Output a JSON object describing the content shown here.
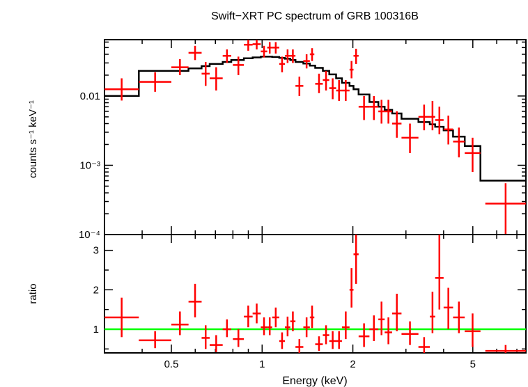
{
  "title": "Swift−XRT PC spectrum of GRB 100316B",
  "colors": {
    "data": "#ff0000",
    "model": "#000000",
    "unity": "#00ff00",
    "frame": "#000000"
  },
  "chart_data": [
    {
      "type": "scatter",
      "panel": "spectrum",
      "ylabel": "counts s⁻¹ keV⁻¹",
      "x_scale": "log",
      "y_scale": "log",
      "xlim": [
        0.3,
        7.5
      ],
      "ylim": [
        0.0001,
        0.065
      ],
      "y_ticks": [
        {
          "value": 0.01,
          "label": "0.01"
        },
        {
          "value": 0.001,
          "label": "10⁻³"
        },
        {
          "value": 0.0001,
          "label": "10⁻⁴"
        }
      ],
      "series": [
        {
          "name": "",
          "kind": "data_with_errors",
          "points": [
            {
              "x0": 0.3,
              "x1": 0.39,
              "y": 0.0125,
              "y0": 0.0086,
              "y1": 0.018
            },
            {
              "x0": 0.39,
              "x1": 0.5,
              "y": 0.016,
              "y0": 0.0115,
              "y1": 0.022
            },
            {
              "x0": 0.5,
              "x1": 0.57,
              "y": 0.026,
              "y0": 0.02,
              "y1": 0.034
            },
            {
              "x0": 0.57,
              "x1": 0.63,
              "y": 0.042,
              "y0": 0.033,
              "y1": 0.053
            },
            {
              "x0": 0.63,
              "x1": 0.67,
              "y": 0.021,
              "y0": 0.014,
              "y1": 0.031
            },
            {
              "x0": 0.67,
              "x1": 0.74,
              "y": 0.018,
              "y0": 0.012,
              "y1": 0.026
            },
            {
              "x0": 0.74,
              "x1": 0.79,
              "y": 0.038,
              "y0": 0.03,
              "y1": 0.047
            },
            {
              "x0": 0.8,
              "x1": 0.87,
              "y": 0.028,
              "y0": 0.02,
              "y1": 0.037
            },
            {
              "x0": 0.87,
              "x1": 0.93,
              "y": 0.055,
              "y0": 0.045,
              "y1": 0.065
            },
            {
              "x0": 0.93,
              "x1": 0.99,
              "y": 0.056,
              "y0": 0.047,
              "y1": 0.065
            },
            {
              "x0": 0.99,
              "x1": 1.04,
              "y": 0.044,
              "y0": 0.036,
              "y1": 0.053
            },
            {
              "x0": 1.04,
              "x1": 1.08,
              "y": 0.05,
              "y0": 0.041,
              "y1": 0.06
            },
            {
              "x0": 1.08,
              "x1": 1.14,
              "y": 0.05,
              "y0": 0.041,
              "y1": 0.06
            },
            {
              "x0": 1.14,
              "x1": 1.19,
              "y": 0.029,
              "y0": 0.022,
              "y1": 0.037
            },
            {
              "x0": 1.19,
              "x1": 1.24,
              "y": 0.038,
              "y0": 0.03,
              "y1": 0.047
            },
            {
              "x0": 1.24,
              "x1": 1.29,
              "y": 0.038,
              "y0": 0.03,
              "y1": 0.047
            },
            {
              "x0": 1.29,
              "x1": 1.37,
              "y": 0.014,
              "y0": 0.01,
              "y1": 0.019
            },
            {
              "x0": 1.37,
              "x1": 1.44,
              "y": 0.032,
              "y0": 0.025,
              "y1": 0.04
            },
            {
              "x0": 1.44,
              "x1": 1.49,
              "y": 0.04,
              "y0": 0.032,
              "y1": 0.049
            },
            {
              "x0": 1.5,
              "x1": 1.59,
              "y": 0.015,
              "y0": 0.011,
              "y1": 0.021
            },
            {
              "x0": 1.59,
              "x1": 1.67,
              "y": 0.017,
              "y0": 0.012,
              "y1": 0.023
            },
            {
              "x0": 1.67,
              "x1": 1.76,
              "y": 0.013,
              "y0": 0.009,
              "y1": 0.018
            },
            {
              "x0": 1.76,
              "x1": 1.84,
              "y": 0.012,
              "y0": 0.0085,
              "y1": 0.017
            },
            {
              "x0": 1.84,
              "x1": 1.95,
              "y": 0.012,
              "y0": 0.0085,
              "y1": 0.017
            },
            {
              "x0": 1.95,
              "x1": 2.01,
              "y": 0.024,
              "y0": 0.018,
              "y1": 0.032
            },
            {
              "x0": 2.01,
              "x1": 2.09,
              "y": 0.038,
              "y0": 0.029,
              "y1": 0.048
            },
            {
              "x0": 2.09,
              "x1": 2.27,
              "y": 0.007,
              "y0": 0.0045,
              "y1": 0.01
            },
            {
              "x0": 2.27,
              "x1": 2.43,
              "y": 0.007,
              "y0": 0.0045,
              "y1": 0.01
            },
            {
              "x0": 2.43,
              "x1": 2.55,
              "y": 0.006,
              "y0": 0.004,
              "y1": 0.0088
            },
            {
              "x0": 2.55,
              "x1": 2.7,
              "y": 0.006,
              "y0": 0.004,
              "y1": 0.0088
            },
            {
              "x0": 2.7,
              "x1": 2.9,
              "y": 0.004,
              "y0": 0.0025,
              "y1": 0.006
            },
            {
              "x0": 2.9,
              "x1": 3.3,
              "y": 0.0025,
              "y0": 0.0015,
              "y1": 0.004
            },
            {
              "x0": 3.3,
              "x1": 3.6,
              "y": 0.005,
              "y0": 0.0032,
              "y1": 0.0075
            },
            {
              "x0": 3.6,
              "x1": 3.75,
              "y": 0.005,
              "y0": 0.0032,
              "y1": 0.0085
            },
            {
              "x0": 3.75,
              "x1": 4.0,
              "y": 0.0045,
              "y0": 0.0028,
              "y1": 0.007
            },
            {
              "x0": 4.0,
              "x1": 4.3,
              "y": 0.0033,
              "y0": 0.002,
              "y1": 0.0052
            },
            {
              "x0": 4.3,
              "x1": 4.7,
              "y": 0.0022,
              "y0": 0.0013,
              "y1": 0.0035
            },
            {
              "x0": 4.7,
              "x1": 5.3,
              "y": 0.0015,
              "y0": 0.0008,
              "y1": 0.0025
            },
            {
              "x0": 5.5,
              "x1": 7.5,
              "y": 0.00028,
              "y0": 0.0001,
              "y1": 0.00055
            }
          ]
        },
        {
          "name": "",
          "kind": "model_step",
          "edges": [
            0.3,
            0.39,
            0.5,
            0.57,
            0.63,
            0.67,
            0.74,
            0.79,
            0.87,
            0.93,
            0.99,
            1.04,
            1.08,
            1.14,
            1.19,
            1.24,
            1.29,
            1.37,
            1.44,
            1.5,
            1.59,
            1.67,
            1.76,
            1.84,
            1.95,
            2.01,
            2.09,
            2.27,
            2.43,
            2.55,
            2.7,
            2.9,
            3.3,
            3.6,
            3.75,
            4.0,
            4.3,
            4.7,
            5.3,
            7.5
          ],
          "values": [
            0.01,
            0.023,
            0.023,
            0.025,
            0.027,
            0.029,
            0.031,
            0.033,
            0.035,
            0.036,
            0.037,
            0.037,
            0.0365,
            0.0355,
            0.0345,
            0.033,
            0.031,
            0.0295,
            0.0275,
            0.0255,
            0.023,
            0.0205,
            0.018,
            0.0155,
            0.014,
            0.0125,
            0.0105,
            0.0082,
            0.007,
            0.0063,
            0.0056,
            0.0047,
            0.0042,
            0.0039,
            0.0036,
            0.0032,
            0.0026,
            0.0019,
            0.0006
          ]
        }
      ]
    },
    {
      "type": "scatter",
      "panel": "ratio",
      "xlabel": "Energy (keV)",
      "ylabel": "ratio",
      "x_scale": "log",
      "xlim": [
        0.3,
        7.5
      ],
      "ylim": [
        0.4,
        3.4
      ],
      "x_ticks": [
        {
          "value": 0.5,
          "label": "0.5"
        },
        {
          "value": 1,
          "label": "1"
        },
        {
          "value": 2,
          "label": "2"
        },
        {
          "value": 5,
          "label": "5"
        }
      ],
      "y_ticks": [
        {
          "value": 1,
          "label": "1"
        },
        {
          "value": 2,
          "label": "2"
        },
        {
          "value": 3,
          "label": "3"
        }
      ],
      "reference_line": 1,
      "series": [
        {
          "name": "",
          "kind": "data_with_errors",
          "points": [
            {
              "x0": 0.3,
              "x1": 0.39,
              "y": 1.3,
              "y0": 0.8,
              "y1": 1.8
            },
            {
              "x0": 0.39,
              "x1": 0.5,
              "y": 0.72,
              "y0": 0.52,
              "y1": 0.95
            },
            {
              "x0": 0.5,
              "x1": 0.57,
              "y": 1.12,
              "y0": 0.85,
              "y1": 1.45
            },
            {
              "x0": 0.57,
              "x1": 0.63,
              "y": 1.7,
              "y0": 1.3,
              "y1": 2.15
            },
            {
              "x0": 0.63,
              "x1": 0.67,
              "y": 0.78,
              "y0": 0.5,
              "y1": 1.1
            },
            {
              "x0": 0.67,
              "x1": 0.74,
              "y": 0.6,
              "y0": 0.42,
              "y1": 0.85
            },
            {
              "x0": 0.74,
              "x1": 0.79,
              "y": 1.0,
              "y0": 0.8,
              "y1": 1.25
            },
            {
              "x0": 0.8,
              "x1": 0.87,
              "y": 0.75,
              "y0": 0.55,
              "y1": 1.0
            },
            {
              "x0": 0.87,
              "x1": 0.93,
              "y": 1.32,
              "y0": 1.05,
              "y1": 1.6
            },
            {
              "x0": 0.93,
              "x1": 0.99,
              "y": 1.4,
              "y0": 1.15,
              "y1": 1.65
            },
            {
              "x0": 0.99,
              "x1": 1.04,
              "y": 1.05,
              "y0": 0.85,
              "y1": 1.3
            },
            {
              "x0": 1.04,
              "x1": 1.08,
              "y": 1.05,
              "y0": 0.85,
              "y1": 1.3
            },
            {
              "x0": 1.08,
              "x1": 1.14,
              "y": 1.3,
              "y0": 1.05,
              "y1": 1.55
            },
            {
              "x0": 1.14,
              "x1": 1.19,
              "y": 0.7,
              "y0": 0.5,
              "y1": 0.92
            },
            {
              "x0": 1.19,
              "x1": 1.24,
              "y": 1.05,
              "y0": 0.82,
              "y1": 1.32
            },
            {
              "x0": 1.24,
              "x1": 1.29,
              "y": 1.2,
              "y0": 0.95,
              "y1": 1.45
            },
            {
              "x0": 1.29,
              "x1": 1.37,
              "y": 0.55,
              "y0": 0.4,
              "y1": 0.75
            },
            {
              "x0": 1.37,
              "x1": 1.44,
              "y": 1.05,
              "y0": 0.8,
              "y1": 1.3
            },
            {
              "x0": 1.44,
              "x1": 1.49,
              "y": 1.3,
              "y0": 1.03,
              "y1": 1.6
            },
            {
              "x0": 1.5,
              "x1": 1.59,
              "y": 0.62,
              "y0": 0.45,
              "y1": 0.82
            },
            {
              "x0": 1.59,
              "x1": 1.67,
              "y": 0.85,
              "y0": 0.62,
              "y1": 1.1
            },
            {
              "x0": 1.67,
              "x1": 1.76,
              "y": 0.7,
              "y0": 0.5,
              "y1": 0.95
            },
            {
              "x0": 1.76,
              "x1": 1.84,
              "y": 0.7,
              "y0": 0.5,
              "y1": 0.95
            },
            {
              "x0": 1.84,
              "x1": 1.95,
              "y": 1.05,
              "y0": 0.75,
              "y1": 1.45
            },
            {
              "x0": 1.95,
              "x1": 2.01,
              "y": 2.0,
              "y0": 1.55,
              "y1": 2.55
            },
            {
              "x0": 2.01,
              "x1": 2.09,
              "y": 2.9,
              "y0": 2.15,
              "y1": 3.4
            },
            {
              "x0": 2.09,
              "x1": 2.27,
              "y": 0.82,
              "y0": 0.55,
              "y1": 1.15
            },
            {
              "x0": 2.27,
              "x1": 2.43,
              "y": 1.0,
              "y0": 0.7,
              "y1": 1.35
            },
            {
              "x0": 2.43,
              "x1": 2.55,
              "y": 1.25,
              "y0": 0.85,
              "y1": 1.7
            },
            {
              "x0": 2.55,
              "x1": 2.7,
              "y": 0.92,
              "y0": 0.62,
              "y1": 1.3
            },
            {
              "x0": 2.7,
              "x1": 2.9,
              "y": 1.4,
              "y0": 0.95,
              "y1": 1.9
            },
            {
              "x0": 2.9,
              "x1": 3.3,
              "y": 0.88,
              "y0": 0.6,
              "y1": 1.2
            },
            {
              "x0": 3.3,
              "x1": 3.6,
              "y": 0.55,
              "y0": 0.4,
              "y1": 0.8
            },
            {
              "x0": 3.6,
              "x1": 3.75,
              "y": 1.32,
              "y0": 0.9,
              "y1": 1.95
            },
            {
              "x0": 3.75,
              "x1": 4.0,
              "y": 2.3,
              "y0": 1.5,
              "y1": 3.4
            },
            {
              "x0": 4.0,
              "x1": 4.3,
              "y": 1.55,
              "y0": 1.0,
              "y1": 2.05
            },
            {
              "x0": 4.3,
              "x1": 4.7,
              "y": 1.3,
              "y0": 0.9,
              "y1": 1.7
            },
            {
              "x0": 4.7,
              "x1": 5.3,
              "y": 0.95,
              "y0": 0.55,
              "y1": 1.4
            },
            {
              "x0": 5.5,
              "x1": 7.5,
              "y": 0.45,
              "y0": 0.4,
              "y1": 0.6
            }
          ]
        }
      ]
    }
  ]
}
